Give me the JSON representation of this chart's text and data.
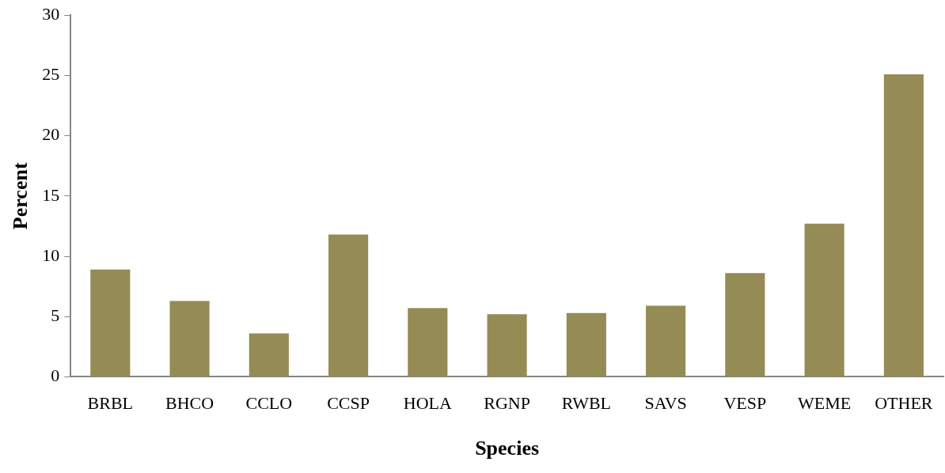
{
  "chart_data": {
    "type": "bar",
    "xlabel": "Species",
    "ylabel": "Percent",
    "categories": [
      "BRBL",
      "BHCO",
      "CCLO",
      "CCSP",
      "HOLA",
      "RGNP",
      "RWBL",
      "SAVS",
      "VESP",
      "WEME",
      "OTHER"
    ],
    "values": [
      8.9,
      6.3,
      3.6,
      11.8,
      5.7,
      5.2,
      5.3,
      5.9,
      8.6,
      12.7,
      25.1
    ],
    "color": "#958b54",
    "ylim": [
      0,
      30
    ],
    "yticks": [
      0,
      5,
      10,
      15,
      20,
      25,
      30
    ],
    "grid": false,
    "legend": false
  }
}
